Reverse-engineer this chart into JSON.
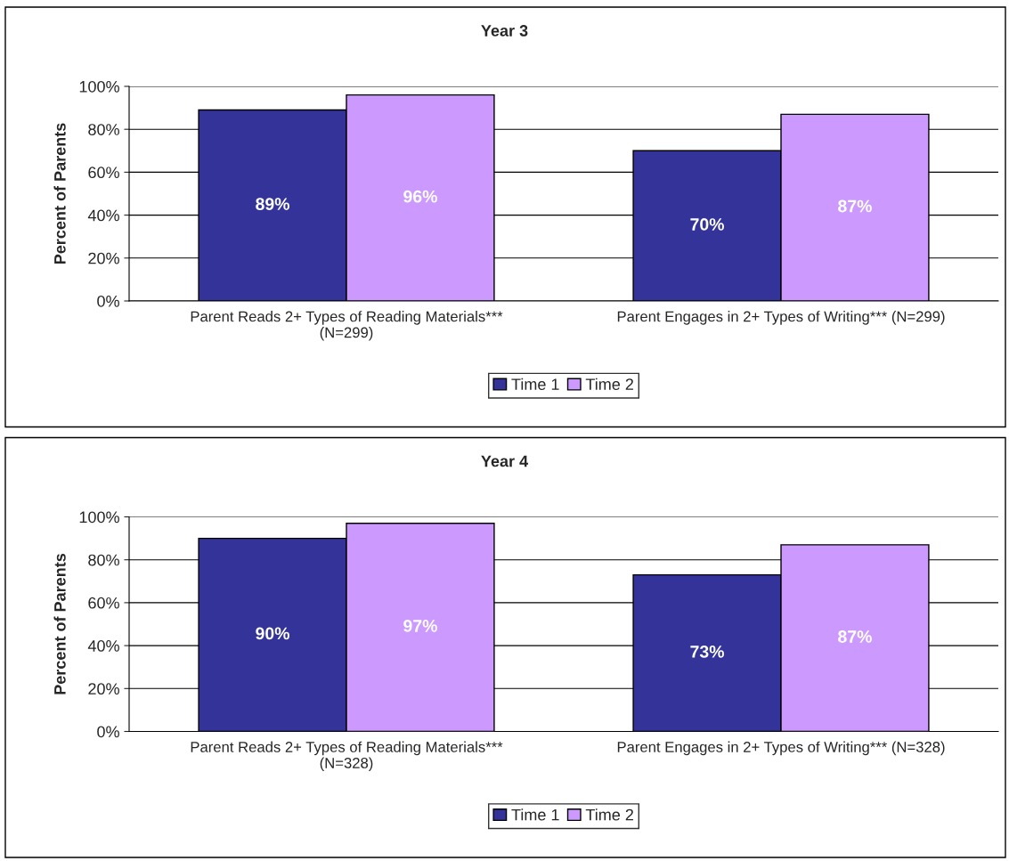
{
  "chart_data": [
    {
      "type": "bar",
      "title": "Year 3",
      "ylabel": "Percent of Parents",
      "categories": [
        "Parent Reads 2+ Types of Reading Materials***\n(N=299)",
        "Parent Engages in 2+ Types of Writing*** (N=299)"
      ],
      "series": [
        {
          "name": "Time 1",
          "color": "#333399",
          "values": [
            89,
            70
          ],
          "value_labels": [
            "89%",
            "70%"
          ]
        },
        {
          "name": "Time 2",
          "color": "#cc99ff",
          "values": [
            96,
            87
          ],
          "value_labels": [
            "96%",
            "87%"
          ]
        }
      ],
      "ylim": [
        0,
        100
      ],
      "yticks": [
        {
          "value": 0,
          "label": "0%"
        },
        {
          "value": 20,
          "label": "20%"
        },
        {
          "value": 40,
          "label": "40%"
        },
        {
          "value": 60,
          "label": "60%"
        },
        {
          "value": 80,
          "label": "80%"
        },
        {
          "value": 100,
          "label": "100%"
        }
      ],
      "grid": "y",
      "legend": "bottom"
    },
    {
      "type": "bar",
      "title": "Year 4",
      "ylabel": "Percent of Parents",
      "categories": [
        "Parent Reads 2+ Types of Reading Materials***\n(N=328)",
        "Parent Engages in 2+ Types of Writing*** (N=328)"
      ],
      "series": [
        {
          "name": "Time 1",
          "color": "#333399",
          "values": [
            90,
            73
          ],
          "value_labels": [
            "90%",
            "73%"
          ]
        },
        {
          "name": "Time 2",
          "color": "#cc99ff",
          "values": [
            97,
            87
          ],
          "value_labels": [
            "97%",
            "87%"
          ]
        }
      ],
      "ylim": [
        0,
        100
      ],
      "yticks": [
        {
          "value": 0,
          "label": "0%"
        },
        {
          "value": 20,
          "label": "20%"
        },
        {
          "value": 40,
          "label": "40%"
        },
        {
          "value": 60,
          "label": "60%"
        },
        {
          "value": 80,
          "label": "80%"
        },
        {
          "value": 100,
          "label": "100%"
        }
      ],
      "grid": "y",
      "legend": "bottom"
    }
  ]
}
